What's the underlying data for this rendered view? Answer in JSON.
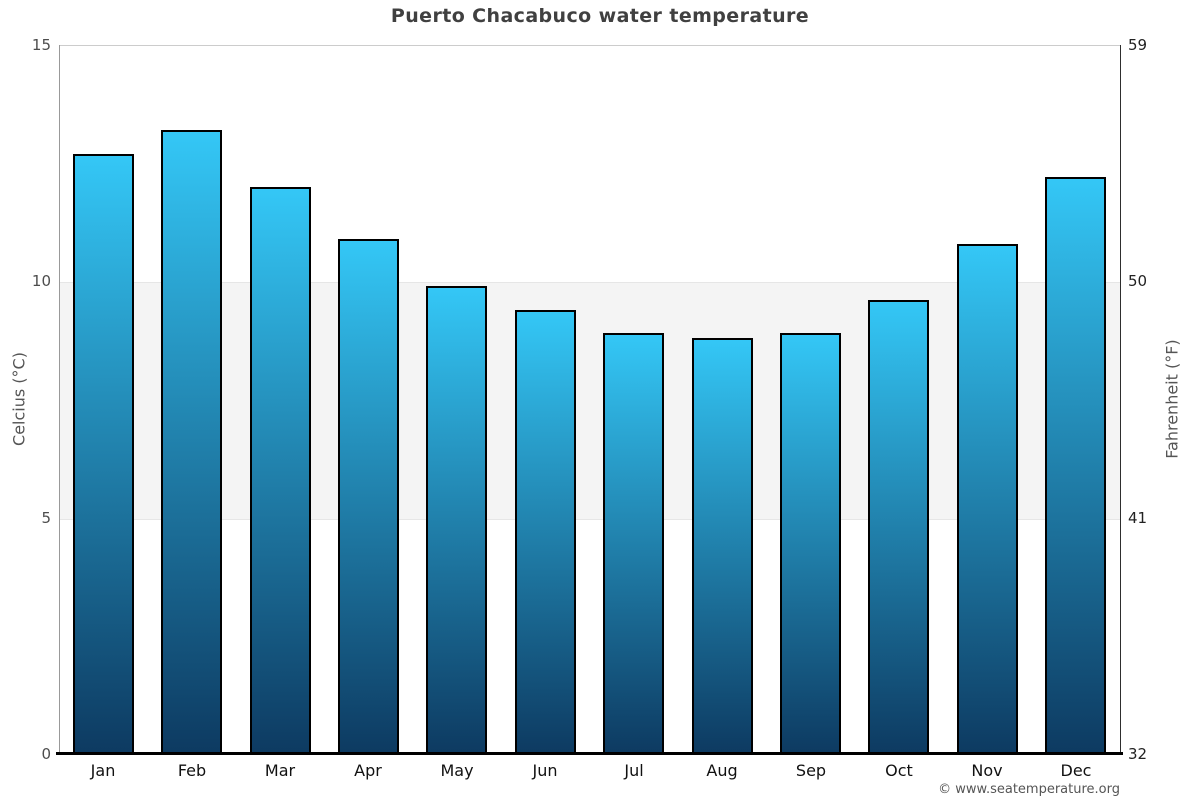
{
  "title": "Puerto Chacabuco water temperature",
  "copyright": "© www.seatemperature.org",
  "chart_data": {
    "type": "bar",
    "title": "Puerto Chacabuco water temperature",
    "categories": [
      "Jan",
      "Feb",
      "Mar",
      "Apr",
      "May",
      "Jun",
      "Jul",
      "Aug",
      "Sep",
      "Oct",
      "Nov",
      "Dec"
    ],
    "values": [
      12.7,
      13.2,
      12.0,
      10.9,
      9.9,
      9.4,
      8.9,
      8.8,
      8.9,
      9.6,
      10.8,
      12.2
    ],
    "ylabel_left": "Celcius (°C)",
    "ylabel_right": "Fahrenheit (°F)",
    "yticks_left": [
      15,
      10,
      5,
      0
    ],
    "yticks_right": [
      59,
      50,
      41,
      32
    ],
    "ylim": [
      0,
      15
    ],
    "grid_band": {
      "from": 5,
      "to": 10,
      "color": "#f4f4f4"
    },
    "legend": "none",
    "colors": {
      "bar_gradient_top": "#34c7f6",
      "bar_gradient_bottom": "#0d3a61",
      "bar_border": "#000000",
      "baseline": "#000000",
      "title_text": "#404040",
      "band": "#f4f4f4"
    }
  }
}
